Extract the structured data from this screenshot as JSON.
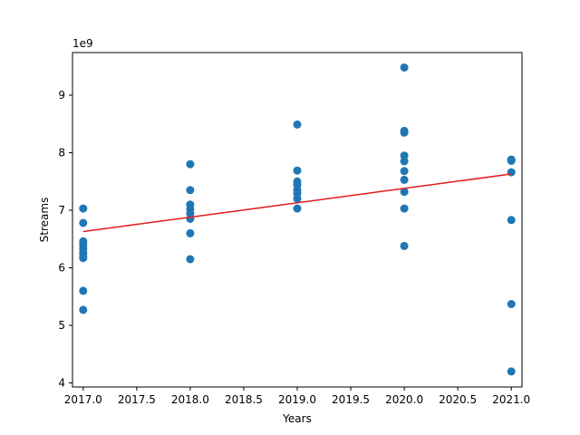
{
  "chart_data": {
    "type": "scatter",
    "xlabel": "Years",
    "ylabel": "Streams",
    "y_offset_label": "1e9",
    "xlim": [
      2016.9,
      2021.1
    ],
    "ylim": [
      3.93,
      9.74
    ],
    "x_ticks": [
      2017.0,
      2017.5,
      2018.0,
      2018.5,
      2019.0,
      2019.5,
      2020.0,
      2020.5,
      2021.0
    ],
    "x_tick_labels": [
      "2017.0",
      "2017.5",
      "2018.0",
      "2018.5",
      "2019.0",
      "2019.5",
      "2020.0",
      "2020.5",
      "2021.0"
    ],
    "y_ticks": [
      4,
      5,
      6,
      7,
      8,
      9
    ],
    "y_tick_labels": [
      "4",
      "5",
      "6",
      "7",
      "8",
      "9"
    ],
    "grid": false,
    "points": [
      {
        "x": 2017,
        "y": 7.03
      },
      {
        "x": 2017,
        "y": 6.78
      },
      {
        "x": 2017,
        "y": 6.46
      },
      {
        "x": 2017,
        "y": 6.4
      },
      {
        "x": 2017,
        "y": 6.33
      },
      {
        "x": 2017,
        "y": 6.26
      },
      {
        "x": 2017,
        "y": 6.2
      },
      {
        "x": 2017,
        "y": 6.17
      },
      {
        "x": 2017,
        "y": 5.6
      },
      {
        "x": 2017,
        "y": 5.27
      },
      {
        "x": 2018,
        "y": 7.8
      },
      {
        "x": 2018,
        "y": 7.35
      },
      {
        "x": 2018,
        "y": 7.1
      },
      {
        "x": 2018,
        "y": 7.02
      },
      {
        "x": 2018,
        "y": 6.94
      },
      {
        "x": 2018,
        "y": 6.85
      },
      {
        "x": 2018,
        "y": 6.6
      },
      {
        "x": 2018,
        "y": 6.15
      },
      {
        "x": 2019,
        "y": 8.49
      },
      {
        "x": 2019,
        "y": 7.69
      },
      {
        "x": 2019,
        "y": 7.5
      },
      {
        "x": 2019,
        "y": 7.44
      },
      {
        "x": 2019,
        "y": 7.35
      },
      {
        "x": 2019,
        "y": 7.29
      },
      {
        "x": 2019,
        "y": 7.2
      },
      {
        "x": 2019,
        "y": 7.03
      },
      {
        "x": 2020,
        "y": 9.48
      },
      {
        "x": 2020,
        "y": 8.38
      },
      {
        "x": 2020,
        "y": 8.35
      },
      {
        "x": 2020,
        "y": 7.95
      },
      {
        "x": 2020,
        "y": 7.85
      },
      {
        "x": 2020,
        "y": 7.68
      },
      {
        "x": 2020,
        "y": 7.53
      },
      {
        "x": 2020,
        "y": 7.32
      },
      {
        "x": 2020,
        "y": 7.03
      },
      {
        "x": 2020,
        "y": 6.38
      },
      {
        "x": 2021,
        "y": 7.88
      },
      {
        "x": 2021,
        "y": 7.86
      },
      {
        "x": 2021,
        "y": 7.66
      },
      {
        "x": 2021,
        "y": 6.83
      },
      {
        "x": 2021,
        "y": 5.37
      },
      {
        "x": 2021,
        "y": 4.2
      }
    ],
    "trend_line": {
      "x": [
        2017,
        2021
      ],
      "y": [
        6.63,
        7.63
      ]
    },
    "colors": {
      "points": "#1f77b4",
      "trend": "#e41a1c"
    }
  }
}
